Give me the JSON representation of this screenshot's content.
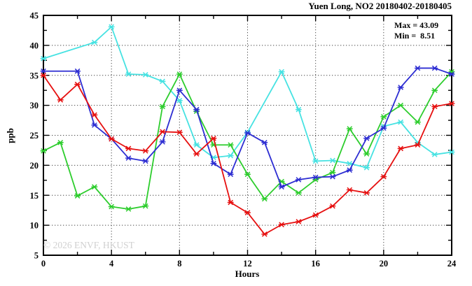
{
  "header": {
    "title": "Yuen Long, NO2 20180402-20180405"
  },
  "legend": {
    "max_line": "Max = 43.09",
    "min_line": "Min =  8.51",
    "max_value": 43.09,
    "min_value": 8.51
  },
  "axes": {
    "ylabel": "ppb",
    "xlabel": "Hours"
  },
  "watermark": {
    "text": "© 2026 ENVF, HKUST",
    "color": "#d0d0d0"
  },
  "chart_data": {
    "type": "line",
    "title": "Yuen Long, NO2 20180402-20180405",
    "xlabel": "Hours",
    "ylabel": "ppb",
    "xlim": [
      0,
      24
    ],
    "ylim": [
      5,
      45
    ],
    "x_ticks_labeled": [
      0,
      4,
      8,
      12,
      16,
      20,
      24
    ],
    "x_tick_minor_step": 2,
    "y_ticks_labeled": [
      5,
      10,
      15,
      20,
      25,
      30,
      35,
      40,
      45
    ],
    "y_tick_minor_step": 2.5,
    "grid_x": [
      4,
      8,
      12,
      16,
      20
    ],
    "grid_y": [
      10,
      15,
      20,
      25,
      30,
      35,
      40
    ],
    "grid_style": "dotted",
    "legend_position": "top-right-inside",
    "annotations": [
      "Max = 43.09",
      "Min =  8.51"
    ],
    "axis_color": "#000000",
    "grid_color": "#4a4a4a",
    "marker": "asterisk",
    "series": [
      {
        "name": "cyan",
        "color": "#46e2e2",
        "hours": [
          0,
          3,
          4,
          5,
          6,
          7,
          8,
          9,
          10,
          11,
          12,
          14,
          15,
          16,
          17,
          18,
          19,
          20,
          21,
          22,
          23,
          24
        ],
        "values": [
          37.8,
          40.5,
          43.09,
          35.2,
          35.1,
          34.0,
          30.8,
          23.4,
          21.3,
          21.6,
          25.5,
          35.6,
          29.3,
          20.7,
          20.8,
          20.3,
          19.6,
          26.5,
          27.2,
          23.8,
          21.8,
          22.2
        ]
      },
      {
        "name": "green",
        "color": "#2dcd2d",
        "hours": [
          0,
          1,
          2,
          3,
          4,
          5,
          6,
          7,
          8,
          9,
          10,
          11,
          12,
          13,
          14,
          15,
          16,
          17,
          18,
          19,
          20,
          21,
          22,
          23,
          24
        ],
        "values": [
          22.4,
          23.8,
          14.9,
          16.4,
          13.1,
          12.7,
          13.2,
          29.8,
          35.2,
          29.0,
          23.4,
          23.4,
          18.5,
          14.4,
          17.3,
          15.4,
          17.6,
          18.8,
          26.1,
          21.9,
          28.1,
          30.0,
          27.2,
          32.5,
          35.6
        ]
      },
      {
        "name": "blue",
        "color": "#2d2dd2",
        "hours": [
          0,
          2,
          3,
          4,
          5,
          6,
          7,
          8,
          9,
          10,
          11,
          12,
          13,
          14,
          15,
          16,
          17,
          18,
          19,
          20,
          21,
          22,
          23,
          24
        ],
        "values": [
          35.7,
          35.7,
          26.7,
          24.4,
          21.2,
          20.7,
          23.9,
          32.5,
          29.3,
          20.3,
          18.5,
          25.4,
          23.8,
          16.4,
          17.6,
          18.0,
          18.1,
          19.2,
          24.5,
          26.2,
          33.0,
          36.2,
          36.2,
          35.2
        ]
      },
      {
        "name": "red",
        "color": "#e61010",
        "hours": [
          0,
          1,
          2,
          3,
          4,
          5,
          6,
          7,
          8,
          9,
          10,
          11,
          12,
          13,
          14,
          15,
          16,
          17,
          18,
          19,
          20,
          21,
          22,
          23,
          24
        ],
        "values": [
          35.0,
          30.9,
          33.5,
          28.4,
          24.4,
          22.8,
          22.4,
          25.6,
          25.5,
          21.9,
          24.5,
          13.8,
          12.1,
          8.51,
          10.1,
          10.6,
          11.7,
          13.2,
          15.9,
          15.4,
          18.1,
          22.8,
          23.4,
          29.8,
          30.3
        ]
      }
    ]
  }
}
